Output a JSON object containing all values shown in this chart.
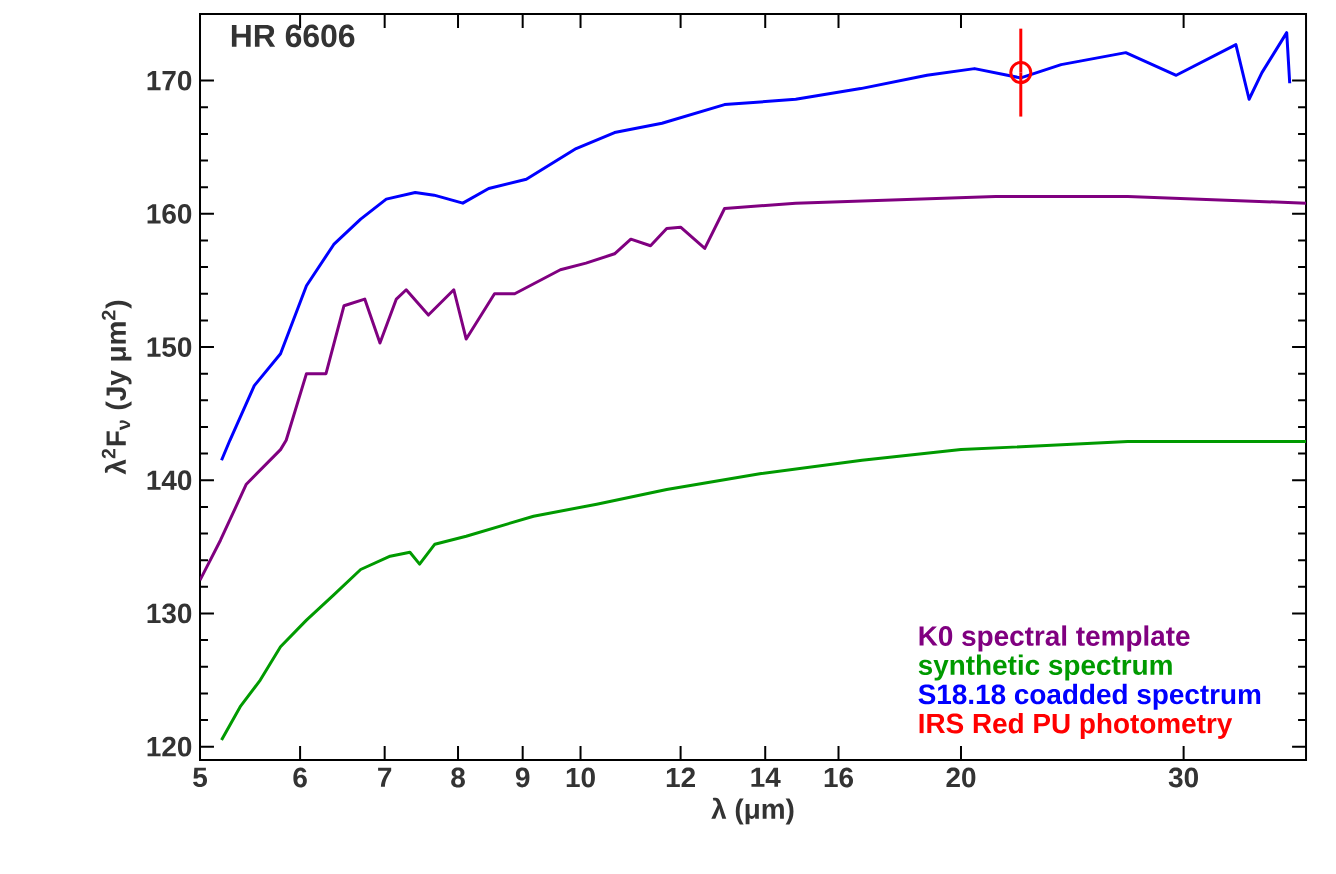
{
  "chart_data": {
    "type": "line",
    "title": "HR 6606",
    "xlabel": "λ (μm)",
    "ylabel": "λ$^{2}$F$_{ν}$ (Jy μm$^{2}$)",
    "log": "x",
    "xlim": [
      5,
      37.5
    ],
    "ylim": [
      119,
      175
    ],
    "xticks": [
      5,
      6,
      7,
      8,
      9,
      10,
      12,
      14,
      16,
      20,
      30
    ],
    "yticks": [
      120,
      130,
      140,
      150,
      160,
      170
    ],
    "legend": "bottom right",
    "grid": false,
    "series": [
      {
        "name": "K0 spectral template",
        "color": "#800080",
        "x": [
          5.0,
          5.19,
          5.44,
          5.79,
          5.85,
          6.07,
          6.29,
          6.5,
          6.75,
          6.94,
          7.15,
          7.28,
          7.58,
          7.94,
          8.12,
          8.55,
          8.87,
          9.64,
          10.1,
          10.64,
          10.96,
          11.36,
          11.7,
          12.0,
          12.54,
          13.0,
          14.8,
          21.3,
          27.1,
          37.5
        ],
        "values": [
          132.5,
          135.5,
          139.7,
          142.3,
          143.0,
          148.0,
          148.0,
          153.1,
          153.6,
          150.3,
          153.6,
          154.3,
          152.4,
          154.3,
          150.6,
          154.0,
          154.0,
          155.8,
          156.3,
          157.0,
          158.1,
          157.6,
          158.9,
          159.0,
          157.4,
          160.4,
          160.8,
          161.3,
          161.3,
          160.8
        ]
      },
      {
        "name": "synthetic spectrum",
        "color": "#009a00",
        "x": [
          5.2,
          5.38,
          5.58,
          5.79,
          6.07,
          6.38,
          6.7,
          7.07,
          7.33,
          7.46,
          7.67,
          8.12,
          9.18,
          10.3,
          11.7,
          13.9,
          16.7,
          20.0,
          27.1,
          37.5
        ],
        "values": [
          120.5,
          123.0,
          125.0,
          127.5,
          129.5,
          131.4,
          133.3,
          134.3,
          134.6,
          133.7,
          135.2,
          135.8,
          137.3,
          138.2,
          139.3,
          140.5,
          141.5,
          142.3,
          142.9,
          142.9
        ]
      },
      {
        "name": "S18.18 coadded spectrum",
        "color": "#0000ff",
        "x": [
          5.2,
          5.28,
          5.52,
          5.79,
          6.07,
          6.38,
          6.7,
          7.02,
          7.4,
          7.66,
          8.07,
          8.46,
          9.06,
          9.92,
          10.64,
          11.6,
          13.0,
          14.8,
          16.66,
          18.8,
          20.5,
          22.3,
          24.0,
          27.0,
          29.6,
          33.0,
          33.8,
          34.6,
          36.2,
          36.4
        ],
        "values": [
          141.5,
          143.0,
          147.1,
          149.5,
          154.6,
          157.7,
          159.6,
          161.1,
          161.6,
          161.4,
          160.8,
          161.9,
          162.6,
          164.9,
          166.1,
          166.8,
          168.2,
          168.6,
          169.4,
          170.4,
          170.9,
          170.2,
          171.2,
          172.1,
          170.4,
          172.7,
          168.6,
          170.6,
          173.6,
          169.8
        ]
      },
      {
        "name": "IRS Red PU photometry",
        "color": "#ff0000",
        "type": "scatter",
        "marker": "circle",
        "x": [
          22.3
        ],
        "values": [
          170.6
        ],
        "errors": [
          3.3
        ]
      }
    ]
  }
}
